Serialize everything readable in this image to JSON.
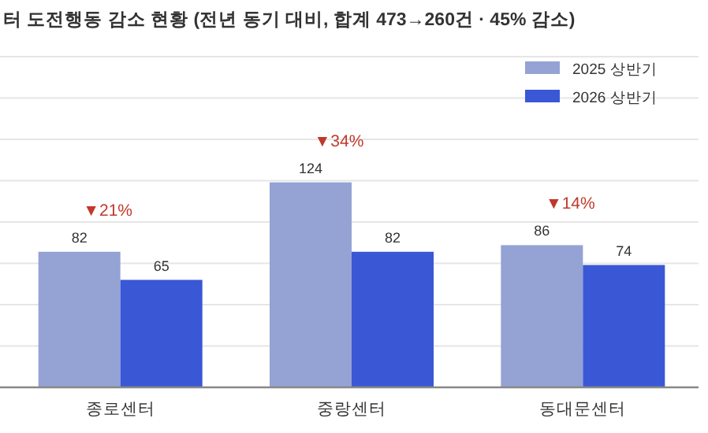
{
  "chart_data": {
    "type": "bar",
    "title": "터 도전행동 감소 현황 (전년 동기 대비, 합계 473→260건 · 45% 감소)",
    "categories": [
      "종로센터",
      "중랑센터",
      "동대문센터"
    ],
    "series": [
      {
        "name": "2025 상반기",
        "color": "#94a3d4",
        "values": [
          82,
          124,
          86
        ]
      },
      {
        "name": "2026 상반기",
        "color": "#3a57d6",
        "values": [
          65,
          82,
          74
        ]
      }
    ],
    "ylim": [
      0,
      200
    ],
    "yticks": [
      {
        "value": 0,
        "label": null
      },
      {
        "value": 25,
        "label": null
      },
      {
        "value": 50,
        "label": null
      },
      {
        "value": 75,
        "label": null
      },
      {
        "value": 100,
        "label": null
      },
      {
        "value": 125,
        "label": null
      },
      {
        "value": 150,
        "label": null
      },
      {
        "value": 175,
        "label": null
      },
      {
        "value": 200,
        "label": null
      }
    ],
    "tick_labels": "x",
    "grid": "y",
    "legend": "top right",
    "data_labels": true,
    "annotations": [
      "▼21%",
      "▼34%",
      "▼14%"
    ]
  }
}
